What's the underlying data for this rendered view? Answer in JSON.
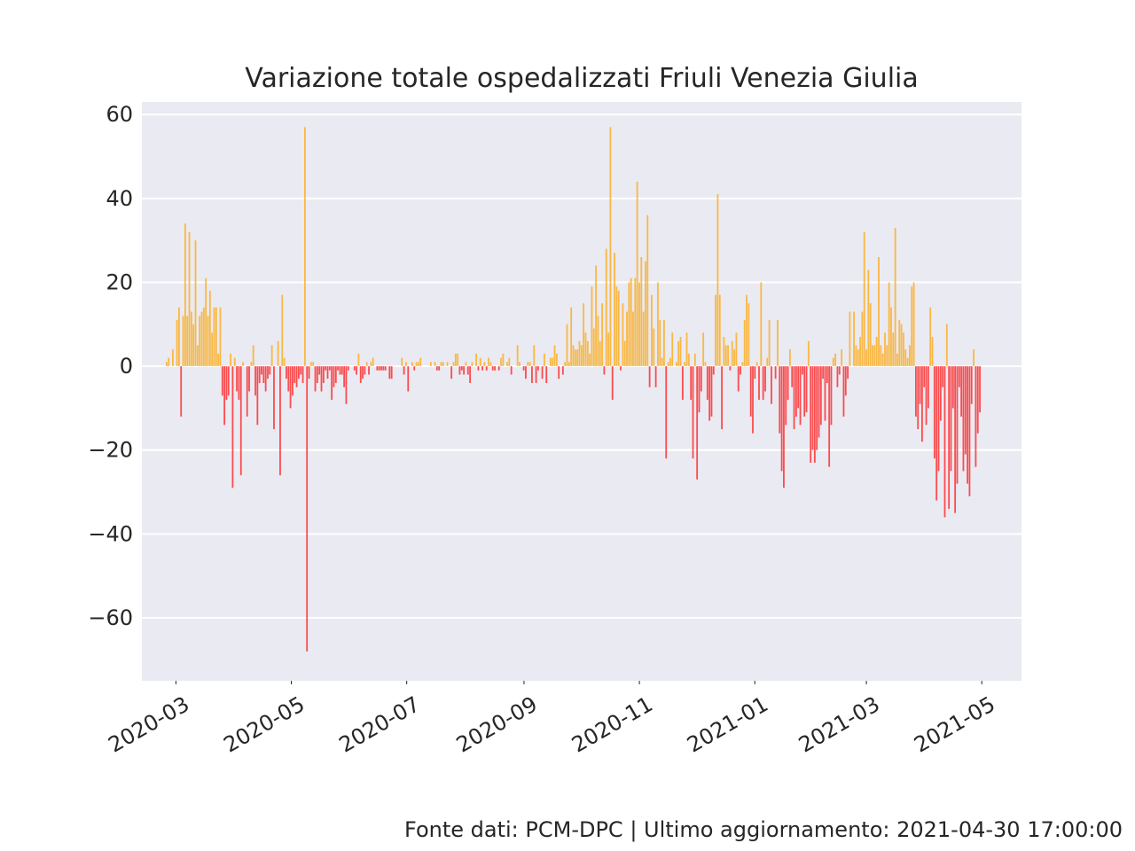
{
  "chart_data": {
    "type": "bar",
    "title": "Variazione totale ospedalizzati Friuli Venezia Giulia",
    "xlabel": "",
    "ylabel": "",
    "x_start": "2020-02-24",
    "x_end": "2021-04-30",
    "x_ticks": [
      "2020-03",
      "2020-05",
      "2020-07",
      "2020-09",
      "2020-11",
      "2021-01",
      "2021-03",
      "2021-05"
    ],
    "y_ticks": [
      60,
      40,
      20,
      0,
      -20,
      -40,
      -60
    ],
    "y_tick_labels": [
      "60",
      "40",
      "20",
      "0",
      "−20",
      "−40",
      "−60"
    ],
    "ylim": [
      -75,
      63
    ],
    "grid": true,
    "colors": {
      "positive": "#ffa500",
      "negative": "#ff1010",
      "background": "#eaeaf2",
      "grid": "#ffffff"
    },
    "values": [
      0,
      1,
      2,
      0,
      4,
      0,
      11,
      14,
      -12,
      12,
      34,
      12,
      32,
      13,
      10,
      30,
      5,
      12,
      13,
      14,
      21,
      12,
      18,
      8,
      14,
      14,
      3,
      14,
      -7,
      -14,
      -8,
      -7,
      3,
      -29,
      2,
      -6,
      -8,
      -26,
      1,
      0,
      -12,
      -6,
      1,
      5,
      -7,
      -14,
      -4,
      -2,
      -4,
      -6,
      -3,
      -2,
      5,
      -15,
      0,
      6,
      -26,
      17,
      2,
      -3,
      -6,
      -10,
      -7,
      -4,
      -5,
      -3,
      -2,
      -4,
      57,
      -68,
      -3,
      1,
      1,
      -6,
      -4,
      -2,
      -6,
      -4,
      -1,
      -3,
      -1,
      -8,
      -5,
      -4,
      -1,
      -2,
      -2,
      -5,
      -9,
      -1,
      0,
      0,
      -1,
      -2,
      3,
      -4,
      -3,
      -2,
      1,
      -2,
      1,
      2,
      0,
      -1,
      -1,
      -1,
      -1,
      -1,
      0,
      -3,
      -3,
      0,
      0,
      0,
      0,
      2,
      -2,
      1,
      -6,
      0,
      1,
      -1,
      1,
      1,
      2,
      0,
      0,
      0,
      0,
      1,
      0,
      1,
      -1,
      -1,
      1,
      1,
      0,
      1,
      0,
      -3,
      1,
      3,
      3,
      -2,
      -1,
      -2,
      1,
      -2,
      -4,
      1,
      0,
      3,
      -1,
      2,
      -1,
      1,
      -1,
      2,
      1,
      -1,
      -1,
      0,
      -1,
      2,
      3,
      0,
      1,
      2,
      -2,
      0,
      0,
      5,
      1,
      0,
      -1,
      -3,
      1,
      1,
      -4,
      5,
      -4,
      -1,
      0,
      -3,
      3,
      -4,
      0,
      2,
      2,
      5,
      3,
      -3,
      0,
      -2,
      1,
      10,
      1,
      14,
      5,
      4,
      4,
      6,
      5,
      15,
      8,
      6,
      3,
      19,
      9,
      24,
      12,
      6,
      15,
      -2,
      28,
      8,
      57,
      -8,
      27,
      19,
      18,
      -1,
      15,
      6,
      13,
      20,
      21,
      13,
      21,
      44,
      20,
      26,
      13,
      25,
      36,
      -5,
      17,
      9,
      -5,
      20,
      11,
      2,
      11,
      -22,
      1,
      2,
      8,
      0,
      1,
      6,
      7,
      -8,
      1,
      8,
      3,
      -8,
      -22,
      3,
      -27,
      -11,
      -6,
      8,
      1,
      -8,
      -13,
      -12,
      -2,
      17,
      41,
      17,
      -15,
      7,
      5,
      5,
      -1,
      6,
      4,
      8,
      -6,
      -2,
      1,
      11,
      17,
      15,
      -12,
      -16,
      -3,
      1,
      -8,
      20,
      -8,
      -6,
      2,
      11,
      -9,
      0,
      -3,
      11,
      -16,
      -25,
      -29,
      -14,
      -8,
      4,
      -5,
      -15,
      -12,
      -10,
      -14,
      -2,
      -12,
      -11,
      6,
      -23,
      -20,
      -23,
      -20,
      -17,
      -14,
      -3,
      -13,
      -4,
      -24,
      -14,
      2,
      3,
      -5,
      -2,
      4,
      -12,
      -7,
      -3,
      13,
      0,
      13,
      5,
      4,
      7,
      13,
      32,
      4,
      23,
      15,
      5,
      5,
      7,
      26,
      5,
      3,
      8,
      5,
      20,
      14,
      8,
      33,
      3,
      11,
      10,
      8,
      4,
      2,
      5,
      19,
      20,
      -12,
      -15,
      -9,
      -18,
      -5,
      -14,
      -10,
      14,
      7,
      -22,
      -32,
      -25,
      -13,
      -5,
      -36,
      10,
      -34,
      -25,
      -10,
      -35,
      -28,
      -5,
      -12,
      -25,
      -21,
      -28,
      -31,
      -9,
      4,
      -24,
      -16,
      -11
    ]
  },
  "footer": {
    "source_text": "Fonte dati: PCM-DPC | Ultimo aggiornamento: 2021-04-30 17:00:00"
  }
}
